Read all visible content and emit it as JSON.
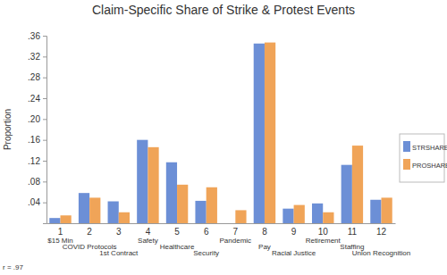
{
  "chart_data": {
    "type": "bar",
    "title": "Claim-Specific Share of Strike & Protest Events",
    "y_label": "Proportion",
    "category_numbers": [
      1,
      2,
      3,
      4,
      5,
      6,
      7,
      8,
      9,
      10,
      11,
      12
    ],
    "categories": [
      "$15 Min",
      "COVID Protocols",
      "1st Contract",
      "Safety",
      "Healthcare",
      "Security",
      "Pandemic",
      "Pay",
      "Racial Justice",
      "Retirement",
      "Staffing",
      "Union Recognition"
    ],
    "series": [
      {
        "name": "STRSHARE",
        "color": "#6c8fd6",
        "values": [
          0.01,
          0.058,
          0.042,
          0.16,
          0.117,
          0.043,
          0.0,
          0.345,
          0.028,
          0.038,
          0.112,
          0.045
        ]
      },
      {
        "name": "PROSHARE",
        "color": "#f0a458",
        "values": [
          0.015,
          0.049,
          0.021,
          0.146,
          0.074,
          0.069,
          0.025,
          0.347,
          0.035,
          0.021,
          0.149,
          0.049
        ]
      }
    ],
    "ylim": [
      0,
      0.36
    ],
    "yticks": [
      {
        "value": 0.04,
        "label": ".04"
      },
      {
        "value": 0.08,
        "label": ".08"
      },
      {
        "value": 0.12,
        "label": ".12"
      },
      {
        "value": 0.16,
        "label": ".16"
      },
      {
        "value": 0.2,
        "label": ".20"
      },
      {
        "value": 0.24,
        "label": ".24"
      },
      {
        "value": 0.28,
        "label": ".28"
      },
      {
        "value": 0.32,
        "label": ".32"
      },
      {
        "value": 0.36,
        "label": ".36"
      }
    ],
    "annotations": [
      "r = .97"
    ],
    "legend": "right",
    "grid": false
  }
}
